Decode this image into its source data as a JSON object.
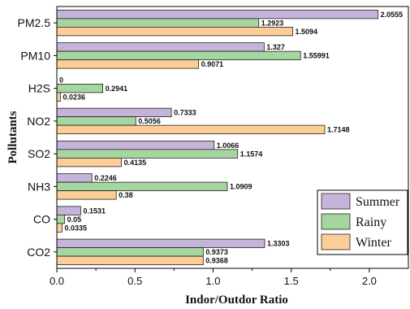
{
  "chart_data": {
    "type": "bar",
    "orientation": "horizontal",
    "title": "",
    "xlabel": "Indor/Outdor Ratio",
    "ylabel": "Pollutants",
    "xlim": [
      0,
      2.25
    ],
    "xticks": [
      "0.0",
      "0.5",
      "1.0",
      "1.5",
      "2.0"
    ],
    "grid": false,
    "legend_position": "bottom-right",
    "categories": [
      "PM2.5",
      "PM10",
      "H2S",
      "NO2",
      "SO2",
      "NH3",
      "CO",
      "CO2"
    ],
    "series": [
      {
        "name": "Summer",
        "color": "#c5b3d9",
        "values": [
          2.0555,
          1.327,
          0,
          0.7333,
          1.0066,
          0.2246,
          0.1531,
          1.3303
        ],
        "labels": [
          "2.0555",
          "1.327",
          "0",
          "0.7333",
          "1.0066",
          "0.2246",
          "0.1531",
          "1.3303"
        ]
      },
      {
        "name": "Rainy",
        "color": "#a5d6a0",
        "values": [
          1.2923,
          1.55991,
          0.2941,
          0.5056,
          1.1574,
          1.0909,
          0.05,
          0.9373
        ],
        "labels": [
          "1.2923",
          "1.55991",
          "0.2941",
          "0.5056",
          "1.1574",
          "1.0909",
          "0.05",
          "0.9373"
        ]
      },
      {
        "name": "Winter",
        "color": "#fccd96",
        "values": [
          1.5094,
          0.9071,
          0.0236,
          1.7148,
          0.4135,
          0.38,
          0.0335,
          0.9368
        ],
        "labels": [
          "1.5094",
          "0.9071",
          "0.0236",
          "1.7148",
          "0.4135",
          "0.38",
          "0.0335",
          "0.9368"
        ]
      }
    ]
  }
}
